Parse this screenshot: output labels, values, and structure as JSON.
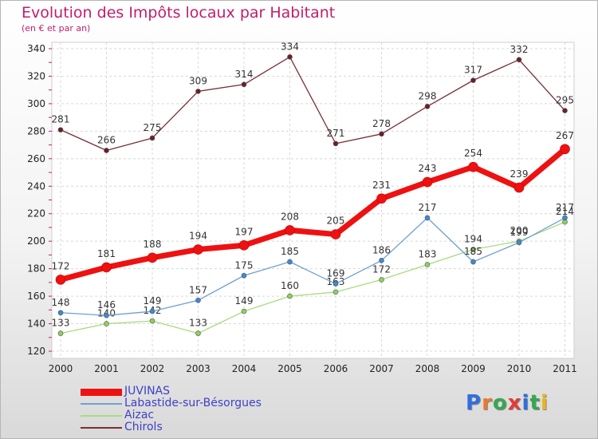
{
  "header": {
    "title": "Evolution des Impôts locaux par Habitant",
    "subtitle": "(en € et par an)"
  },
  "brand": {
    "text": "Proxiti",
    "letters": [
      "P",
      "r",
      "o",
      "x",
      "i",
      "t",
      "i"
    ],
    "colors": [
      "#2f6ee0",
      "#e8792e",
      "#33a852",
      "#e33a3a",
      "#2f6ee0",
      "#33a852",
      "#f0b320"
    ]
  },
  "chart_data": {
    "type": "line",
    "title": "Evolution des Impôts locaux par Habitant",
    "subtitle": "(en € et par an)",
    "xlabel": "",
    "ylabel": "",
    "categories": [
      "2000",
      "2001",
      "2002",
      "2003",
      "2004",
      "2005",
      "2006",
      "2007",
      "2008",
      "2009",
      "2010",
      "2011"
    ],
    "ylim": [
      120,
      340
    ],
    "yticks": [
      120,
      140,
      160,
      180,
      200,
      220,
      240,
      260,
      280,
      300,
      320,
      340
    ],
    "grid": true,
    "legend_position": "bottom-left",
    "series": [
      {
        "name": "JUVINAS",
        "color": "#ee1111",
        "values": [
          172,
          181,
          188,
          194,
          197,
          208,
          205,
          231,
          243,
          254,
          239,
          267
        ]
      },
      {
        "name": "Labastide-sur-Bésorgues",
        "color": "#6fa0cf",
        "values": [
          148,
          146,
          149,
          157,
          175,
          185,
          169,
          186,
          217,
          185,
          199,
          217
        ]
      },
      {
        "name": "Aizac",
        "color": "#a6dc7e",
        "values": [
          133,
          140,
          142,
          133,
          149,
          160,
          163,
          172,
          183,
          194,
          200,
          214
        ]
      },
      {
        "name": "Chirols",
        "color": "#7a2e35",
        "values": [
          281,
          266,
          275,
          309,
          314,
          334,
          271,
          278,
          298,
          317,
          332,
          295
        ]
      }
    ]
  }
}
